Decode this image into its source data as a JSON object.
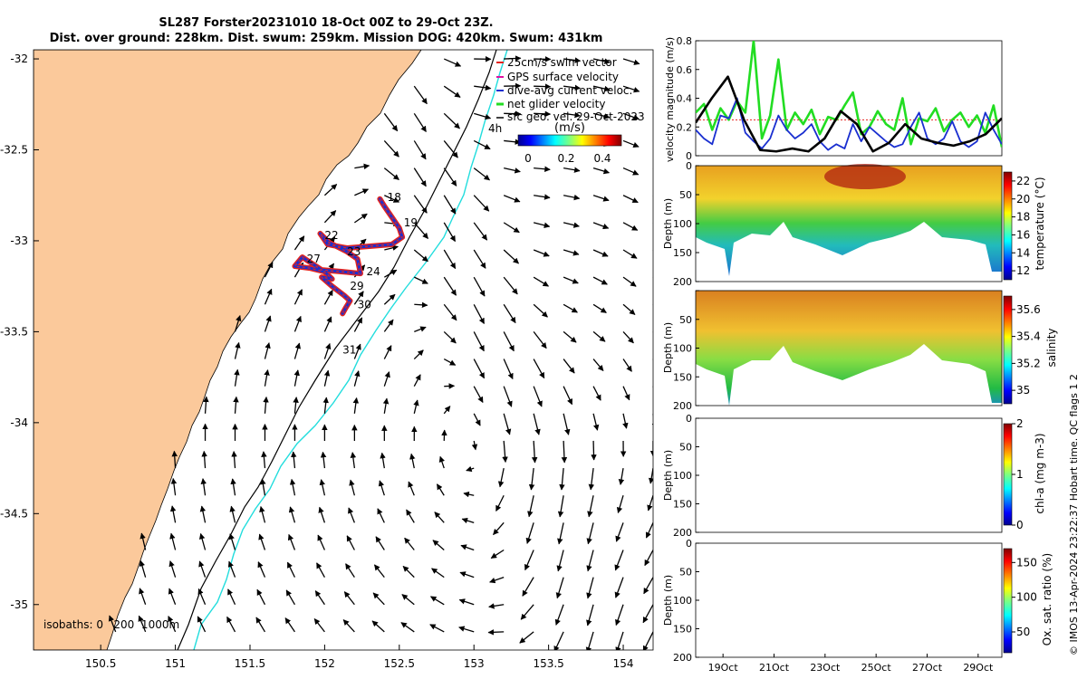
{
  "title": {
    "line1": "SL287 Forster20231010 18-Oct 00Z to 29-Oct 23Z.",
    "line2": "Dist. over ground: 228km. Dist. swum: 259km. Mission DOG: 420km. Swum: 431km"
  },
  "copyright": "© IMOS 13-Apr-2024 23:22:37 Hobart time. QC flags 1  2",
  "colors": {
    "land": "#FBC99B",
    "isobath_200": "#000000",
    "isobath_1000": "#22DDDD",
    "track_red": "#E4231E",
    "track_blue": "#1A2FD0",
    "gps_surface": "#E010A0",
    "net_glider": "#22DD22",
    "swim_ref": "#E4231E"
  },
  "chart_data": [
    {
      "type": "map",
      "name": "glider track and surface geostrophic velocity",
      "xlim": [
        150.05,
        154.2
      ],
      "ylim": [
        -35.25,
        -31.95
      ],
      "xticks": [
        150.5,
        151,
        151.5,
        152,
        152.5,
        153,
        153.5,
        154
      ],
      "xtick_labels": [
        "150.5",
        "151",
        "151.5",
        "152",
        "152.5",
        "153",
        "153.5",
        "154"
      ],
      "yticks": [
        -32,
        -32.5,
        -33,
        -33.5,
        -34,
        -34.5,
        -35
      ],
      "ytick_labels": [
        "-32",
        "-32.5",
        "-33",
        "-33.5",
        "-34",
        "-34.5",
        "-35"
      ],
      "legend": [
        "25cm/s swim vector",
        "GPS surface velocity",
        "dive-avg current veloc.",
        "net glider velocity",
        "sfc geo. vel. 29-Oct-2023"
      ],
      "colorbar": {
        "label": "(m/s)",
        "range": [
          0,
          0.5
        ],
        "ticks": [
          "0",
          "0.2",
          "0.4"
        ]
      },
      "annotations": {
        "time_offset": "4h",
        "isobaths": "isobaths: 0   200  1000m"
      },
      "day_labels": [
        {
          "label": "18",
          "lon": 152.42,
          "lat": -32.78
        },
        {
          "label": "19",
          "lon": 152.53,
          "lat": -32.92
        },
        {
          "label": "22",
          "lon": 152.0,
          "lat": -32.99
        },
        {
          "label": "23",
          "lon": 152.15,
          "lat": -33.08
        },
        {
          "label": "27",
          "lon": 151.88,
          "lat": -33.12
        },
        {
          "label": "24",
          "lon": 152.28,
          "lat": -33.19
        },
        {
          "label": "29",
          "lon": 152.17,
          "lat": -33.27
        },
        {
          "label": "30",
          "lon": 152.22,
          "lat": -33.37
        },
        {
          "label": "31",
          "lon": 152.12,
          "lat": -33.62
        }
      ],
      "track": [
        [
          152.37,
          -32.77
        ],
        [
          152.4,
          -32.81
        ],
        [
          152.45,
          -32.87
        ],
        [
          152.5,
          -32.93
        ],
        [
          152.52,
          -32.98
        ],
        [
          152.45,
          -33.02
        ],
        [
          152.3,
          -33.03
        ],
        [
          152.15,
          -33.04
        ],
        [
          152.02,
          -33.02
        ],
        [
          151.97,
          -32.96
        ],
        [
          152.03,
          -33.01
        ],
        [
          152.15,
          -33.06
        ],
        [
          152.22,
          -33.1
        ],
        [
          152.24,
          -33.18
        ],
        [
          152.12,
          -33.17
        ],
        [
          151.98,
          -33.16
        ],
        [
          151.85,
          -33.09
        ],
        [
          151.8,
          -33.14
        ],
        [
          151.9,
          -33.15
        ],
        [
          152.0,
          -33.17
        ],
        [
          152.05,
          -33.21
        ],
        [
          151.98,
          -33.2
        ],
        [
          152.05,
          -33.25
        ],
        [
          152.13,
          -33.3
        ],
        [
          152.17,
          -33.33
        ],
        [
          152.14,
          -33.37
        ],
        [
          152.12,
          -33.4
        ]
      ]
    },
    {
      "type": "line",
      "name": "velocity magnitude",
      "ylabel": "velocity magnitude (m/s)",
      "ylim": [
        0,
        0.8
      ],
      "yticks": [
        "0",
        "0.2",
        "0.4",
        "0.6",
        "0.8"
      ],
      "x_start": "18-Oct",
      "x_end": "29-Oct",
      "series": [
        {
          "name": "swim vector",
          "values": [
            0.25,
            0.25,
            0.25,
            0.25,
            0.25,
            0.25,
            0.25,
            0.25,
            0.25,
            0.25,
            0.25,
            0.25,
            0.25,
            0.25,
            0.25,
            0.25,
            0.25,
            0.25,
            0.25,
            0.25,
            0.25,
            0.25,
            0.25,
            0.25
          ]
        },
        {
          "name": "net glider velocity",
          "values": [
            0.3,
            0.36,
            0.18,
            0.33,
            0.25,
            0.38,
            0.3,
            0.8,
            0.12,
            0.28,
            0.67,
            0.18,
            0.3,
            0.22,
            0.32,
            0.15,
            0.27,
            0.25,
            0.35,
            0.44,
            0.15,
            0.2,
            0.31,
            0.22,
            0.18,
            0.4,
            0.08,
            0.26,
            0.24,
            0.33,
            0.17,
            0.25,
            0.3,
            0.2,
            0.28,
            0.16,
            0.35,
            0.06
          ]
        },
        {
          "name": "dive-avg current veloc.",
          "values": [
            0.18,
            0.12,
            0.08,
            0.28,
            0.26,
            0.4,
            0.16,
            0.1,
            0.05,
            0.12,
            0.28,
            0.18,
            0.12,
            0.16,
            0.22,
            0.1,
            0.04,
            0.08,
            0.05,
            0.22,
            0.1,
            0.2,
            0.15,
            0.1,
            0.06,
            0.08,
            0.2,
            0.3,
            0.12,
            0.08,
            0.12,
            0.24,
            0.1,
            0.06,
            0.1,
            0.3,
            0.18,
            0.08
          ]
        },
        {
          "name": "sfc geo. vel.",
          "values": [
            0.23,
            0.4,
            0.55,
            0.25,
            0.04,
            0.03,
            0.05,
            0.03,
            0.12,
            0.31,
            0.22,
            0.03,
            0.09,
            0.22,
            0.12,
            0.09,
            0.07,
            0.1,
            0.15,
            0.26
          ]
        }
      ]
    },
    {
      "type": "heatmap",
      "name": "temperature",
      "ylabel": "Depth (m)",
      "yticks": [
        "0",
        "50",
        "100",
        "150",
        "200"
      ],
      "colorbar_label": "temperature (°C)",
      "colorbar_ticks": [
        "22",
        "20",
        "18",
        "16",
        "14",
        "12"
      ],
      "colorbar_range": [
        11,
        23
      ],
      "has_data": true
    },
    {
      "type": "heatmap",
      "name": "salinity",
      "ylabel": "Depth (m)",
      "yticks": [
        "50",
        "100",
        "150",
        "200"
      ],
      "colorbar_label": "salinity",
      "colorbar_ticks": [
        "35.6",
        "35.4",
        "35.2",
        "35"
      ],
      "colorbar_range": [
        34.9,
        35.7
      ],
      "has_data": true
    },
    {
      "type": "heatmap",
      "name": "chlorophyll",
      "ylabel": "Depth (m)",
      "yticks": [
        "0",
        "50",
        "100",
        "150",
        "200"
      ],
      "colorbar_label": "chl-a (mg m-3)",
      "colorbar_ticks": [
        "2",
        "1",
        "0"
      ],
      "colorbar_range": [
        0,
        2
      ],
      "has_data": false
    },
    {
      "type": "heatmap",
      "name": "oxygen",
      "ylabel": "Depth (m)",
      "yticks": [
        "0",
        "50",
        "100",
        "150",
        "200"
      ],
      "colorbar_label": "Ox. sat. ratio (%)",
      "colorbar_ticks": [
        "150",
        "100",
        "50"
      ],
      "colorbar_range": [
        20,
        170
      ],
      "has_data": false,
      "xtick_labels": [
        "19Oct",
        "21Oct",
        "23Oct",
        "25Oct",
        "27Oct",
        "29Oct"
      ]
    }
  ]
}
